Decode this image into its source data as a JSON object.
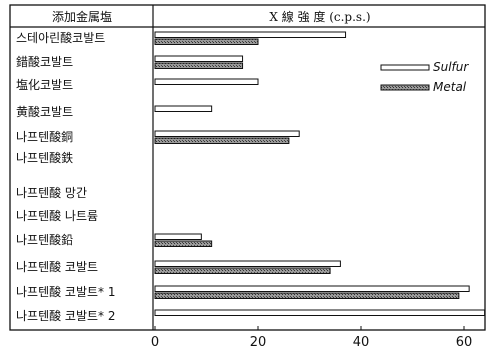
{
  "chart_data": {
    "type": "bar",
    "orientation": "horizontal",
    "header_left": "添加金属塩",
    "header_right": "X 線 強 度 (c.p.s.)",
    "categories": [
      "스테아린酸코발트",
      "錯酸코발트",
      "塩化코발트",
      "黄酸코발트",
      "나프텐酸銅",
      "나프텐酸鉄",
      "나프텐酸 망간",
      "나프텐酸 나트륨",
      "나프텐酸鉛",
      "나프텐酸 코발트",
      "나프텐酸 코발트* 1",
      "나프텐酸 코발트* 2"
    ],
    "series": [
      {
        "name": "Sulfur",
        "values": [
          37,
          17,
          20,
          11,
          28,
          null,
          null,
          null,
          9,
          36,
          61,
          64
        ]
      },
      {
        "name": "Metal",
        "values": [
          20,
          17,
          null,
          null,
          26,
          null,
          null,
          null,
          11,
          34,
          59,
          null
        ]
      }
    ],
    "xticks": [
      "0",
      "20",
      "40",
      "60"
    ],
    "xlim": [
      0,
      64
    ],
    "legend_position": "right",
    "grid": false,
    "colors": {
      "sulfur": "#ffffff",
      "metal": "#8a8a8a",
      "ink": "#111111"
    }
  }
}
